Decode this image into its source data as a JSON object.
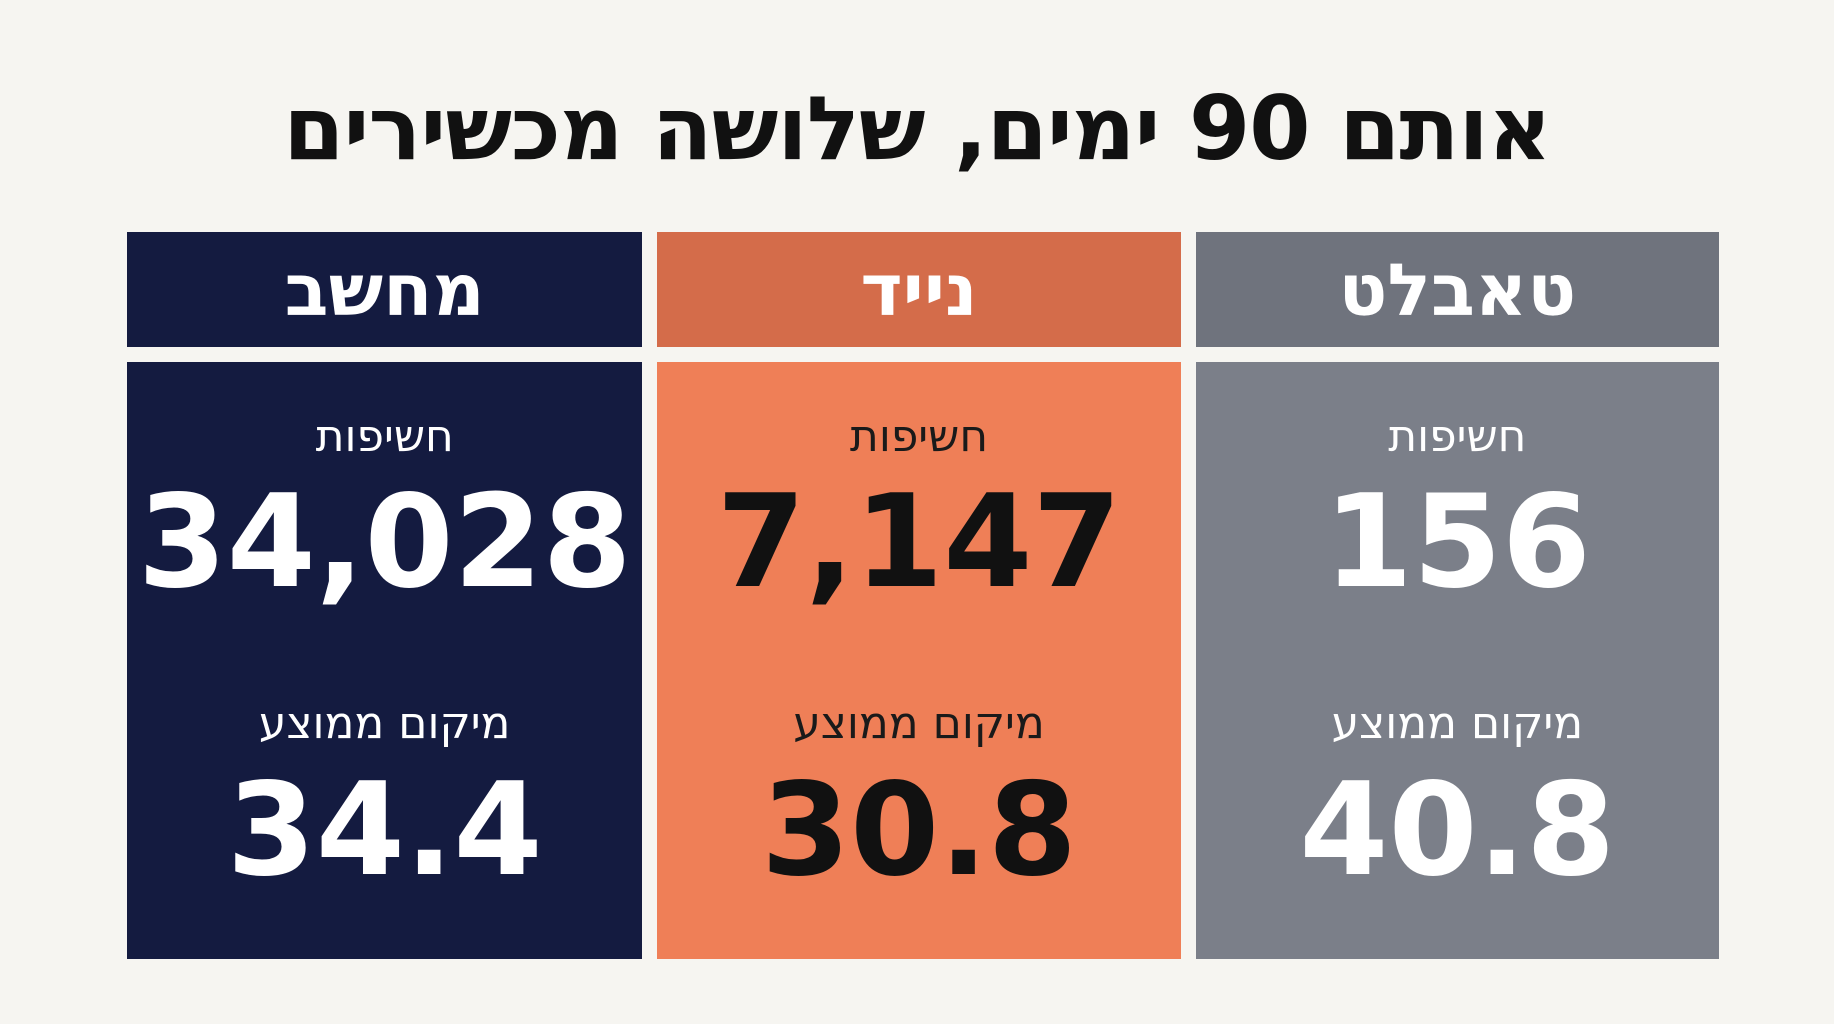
{
  "title": "אותם 90 ימים, שלושה מכשירים",
  "colors": {
    "background": "#f6f5f1",
    "tablet_header": "#6f737d",
    "tablet_body": "#7b7f89",
    "mobile_header": "#d46c4a",
    "mobile_body": "#ef7f57",
    "desktop": "#141b40"
  },
  "devices": [
    {
      "name": "טאבלט",
      "impressions_label": "חשיפות",
      "impressions": "156",
      "avg_position_label": "מיקום ממוצע",
      "avg_position": "40.8"
    },
    {
      "name": "נייד",
      "impressions_label": "חשיפות",
      "impressions": "7,147",
      "avg_position_label": "מיקום ממוצע",
      "avg_position": "30.8"
    },
    {
      "name": "מחשב",
      "impressions_label": "חשיפות",
      "impressions": "34,028",
      "avg_position_label": "מיקום ממוצע",
      "avg_position": "34.4"
    }
  ]
}
